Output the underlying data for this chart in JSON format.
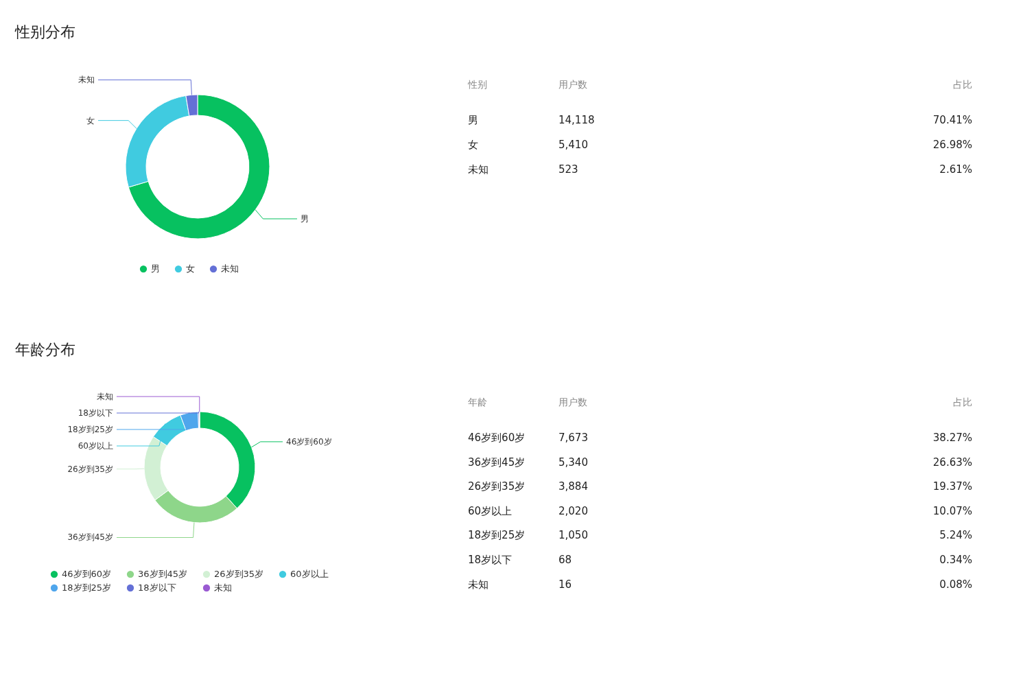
{
  "chart_data": [
    {
      "type": "donut",
      "title": "性别分布",
      "categories": [
        "男",
        "女",
        "未知"
      ],
      "values": [
        70.41,
        26.98,
        2.61
      ],
      "colors": [
        "#07c160",
        "#40cbe0",
        "#6470d6"
      ],
      "legend": "bottom"
    },
    {
      "type": "other",
      "xlabel": "性别",
      "categories": [
        "男",
        "女",
        "未知"
      ],
      "series": [
        {
          "name": "用户数",
          "values": [
            14118,
            5410,
            523
          ],
          "value_labels": [
            "14,118",
            "5,410",
            "523"
          ]
        },
        {
          "name": "占比",
          "values": [
            70.41,
            26.98,
            2.61
          ],
          "value_labels": [
            "70.41%",
            "26.98%",
            "2.61%"
          ]
        }
      ]
    },
    {
      "type": "donut",
      "title": "年龄分布",
      "categories": [
        "46岁到60岁",
        "36岁到45岁",
        "26岁到35岁",
        "60岁以上",
        "18岁到25岁",
        "18岁以下",
        "未知"
      ],
      "values": [
        38.27,
        26.63,
        19.37,
        10.07,
        5.24,
        0.34,
        0.08
      ],
      "colors": [
        "#07c160",
        "#8ed68a",
        "#d2f0d4",
        "#40cbe0",
        "#4fa6ec",
        "#6470d6",
        "#9a5bd2"
      ],
      "legend": "bottom"
    },
    {
      "type": "other",
      "xlabel": "年龄",
      "categories": [
        "46岁到60岁",
        "36岁到45岁",
        "26岁到35岁",
        "60岁以上",
        "18岁到25岁",
        "18岁以下",
        "未知"
      ],
      "series": [
        {
          "name": "用户数",
          "values": [
            7673,
            5340,
            3884,
            2020,
            1050,
            68,
            16
          ],
          "value_labels": [
            "7,673",
            "5,340",
            "3,884",
            "2,020",
            "1,050",
            "68",
            "16"
          ]
        },
        {
          "name": "占比",
          "values": [
            38.27,
            26.63,
            19.37,
            10.07,
            5.24,
            0.34,
            0.08
          ],
          "value_labels": [
            "38.27%",
            "26.63%",
            "19.37%",
            "10.07%",
            "5.24%",
            "0.34%",
            "0.08%"
          ]
        }
      ]
    }
  ]
}
